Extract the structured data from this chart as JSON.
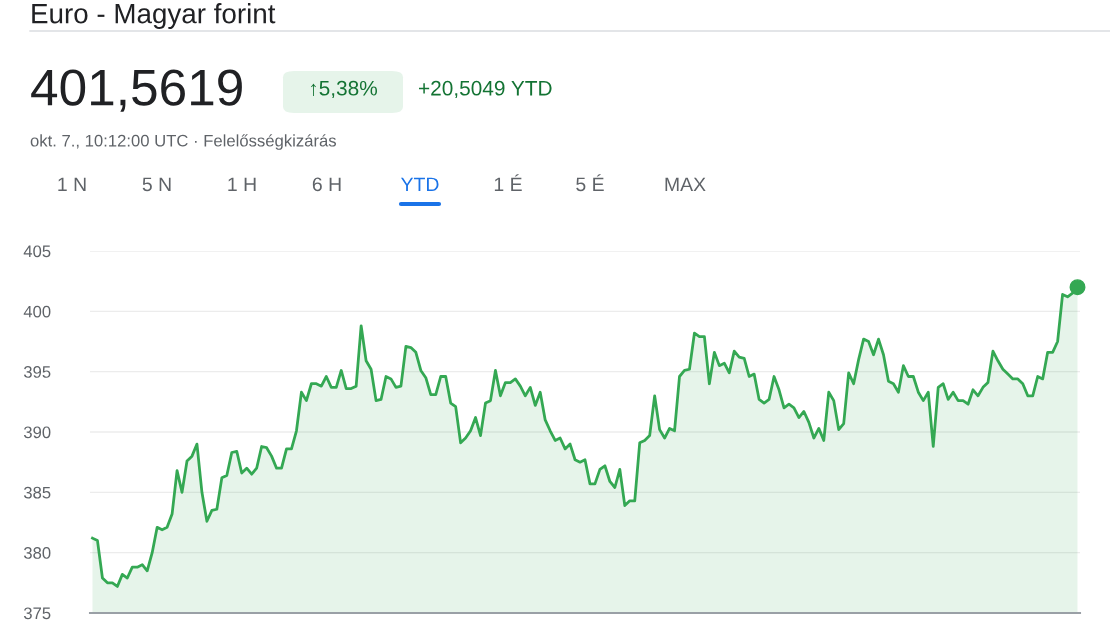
{
  "chart_data": {
    "type": "area",
    "title": "Euro - Magyar forint",
    "annotations": [
      "401,5619",
      "↑5,38%",
      "+20,5049 YTD",
      "okt. 7., 10:12:00 UTC · Felelősségkizárás",
      "1 N",
      "5 N",
      "1 H",
      "6 H",
      "YTD",
      "1 É",
      "5 É",
      "MAX"
    ],
    "categories": [
      null,
      null,
      null,
      null,
      null,
      null,
      null,
      null,
      null,
      null,
      null,
      null,
      null,
      null,
      null,
      null,
      null,
      null,
      null,
      null,
      null,
      null,
      null,
      null,
      null,
      null,
      null,
      null,
      null,
      null,
      null,
      null,
      null,
      null,
      null,
      null,
      null,
      null,
      null,
      null,
      null,
      null,
      null,
      null,
      null,
      null,
      null,
      null,
      null,
      null,
      null,
      null,
      null,
      null,
      null,
      null,
      null,
      null,
      null,
      null,
      null,
      null,
      null,
      null,
      null,
      null,
      null,
      null,
      null,
      null,
      null,
      null,
      null,
      null,
      null,
      null,
      null,
      null,
      null,
      null,
      null,
      null,
      null,
      null,
      null,
      null,
      null,
      null,
      null,
      null,
      null,
      null,
      null,
      null,
      null,
      null,
      null,
      null,
      null,
      null,
      null,
      null,
      null,
      null,
      null,
      null,
      null,
      null,
      null,
      null,
      null,
      null,
      null,
      null,
      null,
      null,
      null,
      null,
      null,
      null,
      null,
      null,
      null,
      null,
      null,
      null,
      null,
      null,
      null,
      null,
      null,
      null,
      null,
      null,
      null,
      null,
      null,
      null,
      null,
      null,
      null,
      null,
      null,
      null,
      null,
      null,
      null,
      null,
      null,
      null,
      null,
      null,
      null,
      null,
      null,
      null,
      null,
      null,
      null,
      null,
      null,
      null,
      null,
      null,
      null,
      null,
      null,
      null,
      null,
      null,
      null,
      null,
      null,
      null,
      null,
      null,
      null,
      null,
      null,
      null,
      null,
      null,
      null,
      null,
      null,
      null,
      null,
      null,
      null,
      null,
      null,
      null,
      null,
      null,
      null,
      null,
      null,
      null,
      null
    ],
    "series": [
      {
        "color": "#34a853",
        "values": [
          381.2,
          381.0,
          377.9,
          377.5,
          377.5,
          377.2,
          378.2,
          377.9,
          378.8,
          378.8,
          379.0,
          378.5,
          380.0,
          382.1,
          381.9,
          382.1,
          383.2,
          386.8,
          385.0,
          387.6,
          388.0,
          389.0,
          385.0,
          382.6,
          383.5,
          383.6,
          386.2,
          386.4,
          388.3,
          388.4,
          386.6,
          387.0,
          386.5,
          387.0,
          388.8,
          388.7,
          388.0,
          387.0,
          387.0,
          388.6,
          388.6,
          390.1,
          393.3,
          392.6,
          394.0,
          394.0,
          393.8,
          394.6,
          393.7,
          393.7,
          395.1,
          393.6,
          393.6,
          393.8,
          398.8,
          395.9,
          395.2,
          392.6,
          392.7,
          394.6,
          394.4,
          393.7,
          393.8,
          397.1,
          397.0,
          396.6,
          395.1,
          394.5,
          393.1,
          393.1,
          394.6,
          394.6,
          392.4,
          392.1,
          389.1,
          389.5,
          390.1,
          391.2,
          389.7,
          392.4,
          392.6,
          395.1,
          393.0,
          394.1,
          394.1,
          394.4,
          393.8,
          393.0,
          393.7,
          392.2,
          393.3,
          391.0,
          390.1,
          389.3,
          389.5,
          388.6,
          389.0,
          387.7,
          387.5,
          387.7,
          385.7,
          385.7,
          386.9,
          387.2,
          385.9,
          385.4,
          386.9,
          383.9,
          384.3,
          384.3,
          389.1,
          389.3,
          389.7,
          393.0,
          390.2,
          389.5,
          390.3,
          390.1,
          394.6,
          395.1,
          395.2,
          398.2,
          397.9,
          397.9,
          394.0,
          396.6,
          395.5,
          395.7,
          394.9,
          396.7,
          396.2,
          396.1,
          394.6,
          394.8,
          392.7,
          392.4,
          392.7,
          394.6,
          393.5,
          392.0,
          392.3,
          392.0,
          391.2,
          391.7,
          390.8,
          389.5,
          390.3,
          389.3,
          393.3,
          392.6,
          390.2,
          390.7,
          394.9,
          394.0,
          396.0,
          397.7,
          397.5,
          396.4,
          397.7,
          396.4,
          394.2,
          394.0,
          393.3,
          395.5,
          394.6,
          394.6,
          393.3,
          392.6,
          393.3,
          388.8,
          393.7,
          394.0,
          392.7,
          393.3,
          392.6,
          392.6,
          392.3,
          393.5,
          393.0,
          393.7,
          394.1,
          396.7,
          395.9,
          395.2,
          394.8,
          394.4,
          394.4,
          394.0,
          393.0,
          393.0,
          394.6,
          394.4,
          396.6,
          396.6,
          397.5,
          401.4,
          401.2,
          401.5,
          402.0
        ]
      },
      {
        "type": "scatter",
        "color": "#34a853",
        "marker": "circle",
        "values": [
          null,
          null,
          null,
          null,
          null,
          null,
          null,
          null,
          null,
          null,
          null,
          null,
          null,
          null,
          null,
          null,
          null,
          null,
          null,
          null,
          null,
          null,
          null,
          null,
          null,
          null,
          null,
          null,
          null,
          null,
          null,
          null,
          null,
          null,
          null,
          null,
          null,
          null,
          null,
          null,
          null,
          null,
          null,
          null,
          null,
          null,
          null,
          null,
          null,
          null,
          null,
          null,
          null,
          null,
          null,
          null,
          null,
          null,
          null,
          null,
          null,
          null,
          null,
          null,
          null,
          null,
          null,
          null,
          null,
          null,
          null,
          null,
          null,
          null,
          null,
          null,
          null,
          null,
          null,
          null,
          null,
          null,
          null,
          null,
          null,
          null,
          null,
          null,
          null,
          null,
          null,
          null,
          null,
          null,
          null,
          null,
          null,
          null,
          null,
          null,
          null,
          null,
          null,
          null,
          null,
          null,
          null,
          null,
          null,
          null,
          null,
          null,
          null,
          null,
          null,
          null,
          null,
          null,
          null,
          null,
          null,
          null,
          null,
          null,
          null,
          null,
          null,
          null,
          null,
          null,
          null,
          null,
          null,
          null,
          null,
          null,
          null,
          null,
          null,
          null,
          null,
          null,
          null,
          null,
          null,
          null,
          null,
          null,
          null,
          null,
          null,
          null,
          null,
          null,
          null,
          null,
          null,
          null,
          null,
          null,
          null,
          null,
          null,
          null,
          null,
          null,
          null,
          null,
          null,
          null,
          null,
          null,
          null,
          null,
          null,
          null,
          null,
          null,
          null,
          null,
          null,
          null,
          null,
          null,
          null,
          null,
          null,
          null,
          null,
          null,
          null,
          null,
          null,
          null,
          null,
          null,
          null,
          null,
          402.0
        ]
      }
    ],
    "ylim": [
      375,
      405
    ],
    "yticks": [
      375,
      380,
      385,
      390,
      395,
      400,
      405
    ],
    "grid": "y",
    "tick_labels": "y"
  }
}
